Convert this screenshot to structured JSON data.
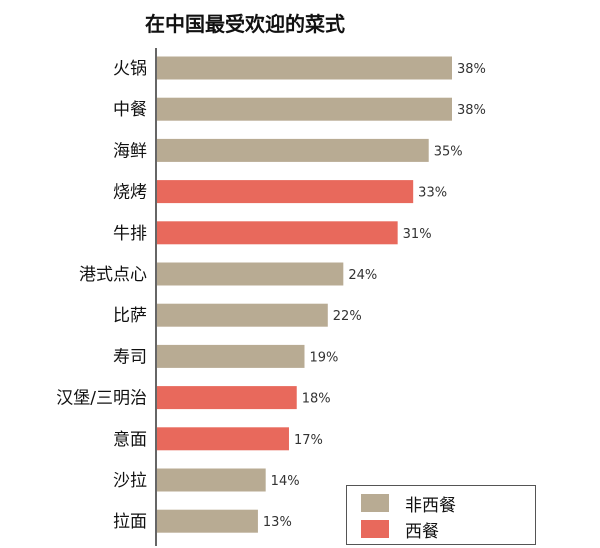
{
  "chart_data": {
    "type": "bar",
    "orientation": "horizontal",
    "title": "在中国最受欢迎的菜式",
    "categories": [
      "火锅",
      "中餐",
      "海鲜",
      "烧烤",
      "牛排",
      "港式点心",
      "比萨",
      "寿司",
      "汉堡/三明治",
      "意面",
      "沙拉",
      "拉面"
    ],
    "values": [
      38,
      38,
      35,
      33,
      31,
      24,
      22,
      19,
      18,
      17,
      14,
      13
    ],
    "value_labels": [
      "38%",
      "38%",
      "35%",
      "33%",
      "31%",
      "24%",
      "22%",
      "19%",
      "18%",
      "17%",
      "14%",
      "13%"
    ],
    "group": [
      "非西餐",
      "非西餐",
      "非西餐",
      "西餐",
      "西餐",
      "非西餐",
      "非西餐",
      "非西餐",
      "西餐",
      "西餐",
      "非西餐",
      "非西餐"
    ],
    "unit": "%",
    "xlim": [
      0,
      38
    ],
    "grid": false,
    "legend": {
      "placement": "bottom-right",
      "entries": [
        {
          "label": "非西餐",
          "color": "#b8ab93"
        },
        {
          "label": "西餐",
          "color": "#e8695c"
        }
      ]
    }
  }
}
